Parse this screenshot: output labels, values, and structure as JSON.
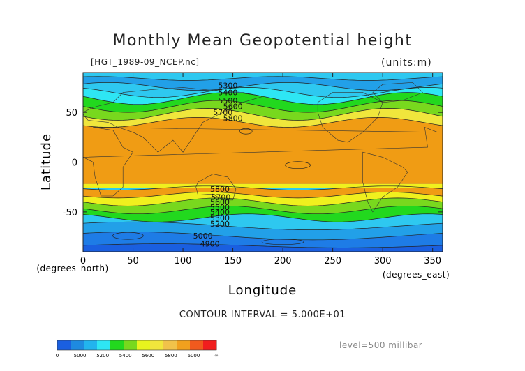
{
  "chart": {
    "title": "Monthly Mean Geopotential height",
    "source_file": "[HGT_1989-09_NCEP.nc]",
    "units": "(units:m)",
    "contour_interval": "CONTOUR INTERVAL = 5.000E+01",
    "level": "level=500 millibar"
  },
  "chart_data": {
    "type": "heatmap",
    "title": "Monthly Mean Geopotential height",
    "xlabel": "Longitude",
    "ylabel": "Latitude",
    "x_unit_label": "(degrees_east)",
    "y_unit_label": "(degrees_north)",
    "xlim": [
      0,
      360
    ],
    "ylim": [
      -90,
      90
    ],
    "x_ticks": [
      0,
      50,
      100,
      150,
      200,
      250,
      300,
      350
    ],
    "y_ticks": [
      -50,
      0,
      50
    ],
    "contour_labels": [
      {
        "lon": 145,
        "lat": 77,
        "text": "5300"
      },
      {
        "lon": 145,
        "lat": 70,
        "text": "5400"
      },
      {
        "lon": 145,
        "lat": 62,
        "text": "5500"
      },
      {
        "lon": 150,
        "lat": 56,
        "text": "5600"
      },
      {
        "lon": 140,
        "lat": 50,
        "text": "5700"
      },
      {
        "lon": 150,
        "lat": 44,
        "text": "5800"
      },
      {
        "lon": 137,
        "lat": -27,
        "text": "5800"
      },
      {
        "lon": 138,
        "lat": -35,
        "text": "5700"
      },
      {
        "lon": 137,
        "lat": -40,
        "text": "5600"
      },
      {
        "lon": 137,
        "lat": -45,
        "text": "5500"
      },
      {
        "lon": 137,
        "lat": -50,
        "text": "5400"
      },
      {
        "lon": 137,
        "lat": -56,
        "text": "5300"
      },
      {
        "lon": 137,
        "lat": -62,
        "text": "5200"
      },
      {
        "lon": 120,
        "lat": -74,
        "text": "5000"
      },
      {
        "lon": 127,
        "lat": -82,
        "text": "4900"
      }
    ],
    "colorbar": {
      "tick_labels": [
        "0",
        "5000",
        "5200",
        "5400",
        "5600",
        "5800",
        "6000",
        "∞"
      ],
      "colors": [
        "#1a5fe0",
        "#1e8ae0",
        "#22b4ee",
        "#2ee6f4",
        "#22d81e",
        "#78d81e",
        "#e8f41e",
        "#f0e63c",
        "#f0c24a",
        "#f0a01e",
        "#f05a1e",
        "#f01e1e"
      ]
    },
    "field_colors": {
      "z4900": "#1a5fe0",
      "z5000": "#1e7ce6",
      "z5200": "#22a0e8",
      "z5400": "#2ec8f0",
      "z5500": "#2ee6f4",
      "z5600": "#22d81e",
      "z5700": "#78d81e",
      "z5750": "#f0f01e",
      "z5800": "#f0e63c",
      "z5850": "#f09c14"
    }
  }
}
